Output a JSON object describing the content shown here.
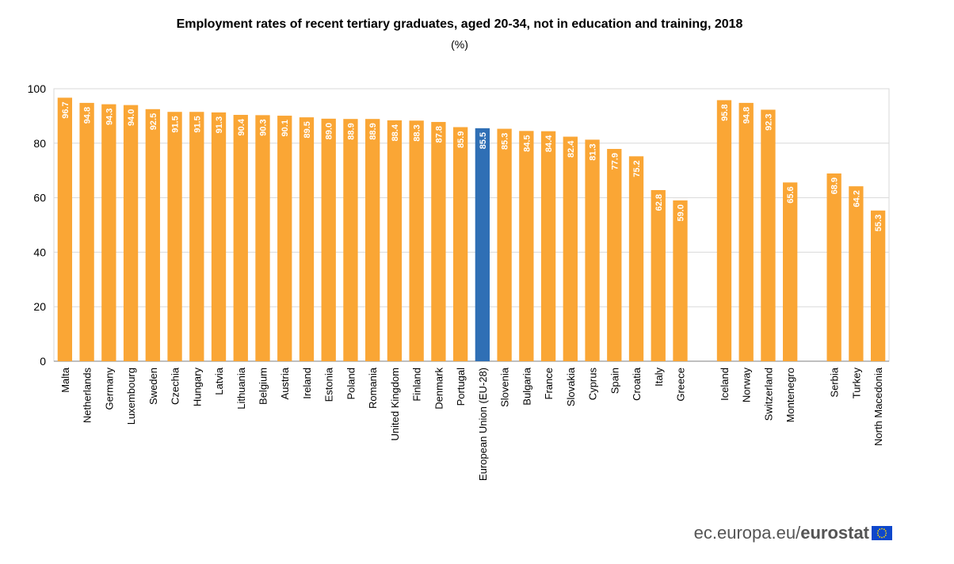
{
  "chart_data": {
    "type": "bar",
    "title": "Employment rates of recent tertiary graduates, aged 20-34, not in education and training, 2018",
    "unit": "(%)",
    "ylim": [
      0,
      100
    ],
    "yticks": [
      0,
      20,
      40,
      60,
      80,
      100
    ],
    "grid": true,
    "colors": {
      "default": "#faa635",
      "highlight": "#2f6fb5"
    },
    "categories": [
      "Malta",
      "Netherlands",
      "Germany",
      "Luxembourg",
      "Sweden",
      "Czechia",
      "Hungary",
      "Latvia",
      "Lithuania",
      "Belgium",
      "Austria",
      "Ireland",
      "Estonia",
      "Poland",
      "Romania",
      "United Kingdom",
      "Finland",
      "Denmark",
      "Portugal",
      "European Union (EU-28)",
      "Slovenia",
      "Bulgaria",
      "France",
      "Slovakia",
      "Cyprus",
      "Spain",
      "Croatia",
      "Italy",
      "Greece",
      "Iceland",
      "Norway",
      "Switzerland",
      "Montenegro",
      "Serbia",
      "Turkey",
      "North Macedonia"
    ],
    "values": [
      96.7,
      94.8,
      94.3,
      94.0,
      92.5,
      91.5,
      91.5,
      91.3,
      90.4,
      90.3,
      90.1,
      89.5,
      89.0,
      88.9,
      88.9,
      88.4,
      88.3,
      87.8,
      85.9,
      85.5,
      85.3,
      84.5,
      84.4,
      82.4,
      81.3,
      77.9,
      75.2,
      62.8,
      59.0,
      95.8,
      94.8,
      92.3,
      65.6,
      68.9,
      64.2,
      55.3
    ],
    "value_labels": [
      "96.7",
      "94.8",
      "94.3",
      "94.0",
      "92.5",
      "91.5",
      "91.5",
      "91.3",
      "90.4",
      "90.3",
      "90.1",
      "89.5",
      "89.0",
      "88.9",
      "88.9",
      "88.4",
      "88.3",
      "87.8",
      "85.9",
      "85.5",
      "85.3",
      "84.5",
      "84.4",
      "82.4",
      "81.3",
      "77.9",
      "75.2",
      "62.8",
      "59.0",
      "95.8",
      "94.8",
      "92.3",
      "65.6",
      "68.9",
      "64.2",
      "55.3"
    ],
    "groups": [
      29,
      4,
      3
    ],
    "highlight": "European Union (EU-28)"
  },
  "footer": {
    "source": "ec.europa.eu/",
    "brand": "eurostat"
  }
}
